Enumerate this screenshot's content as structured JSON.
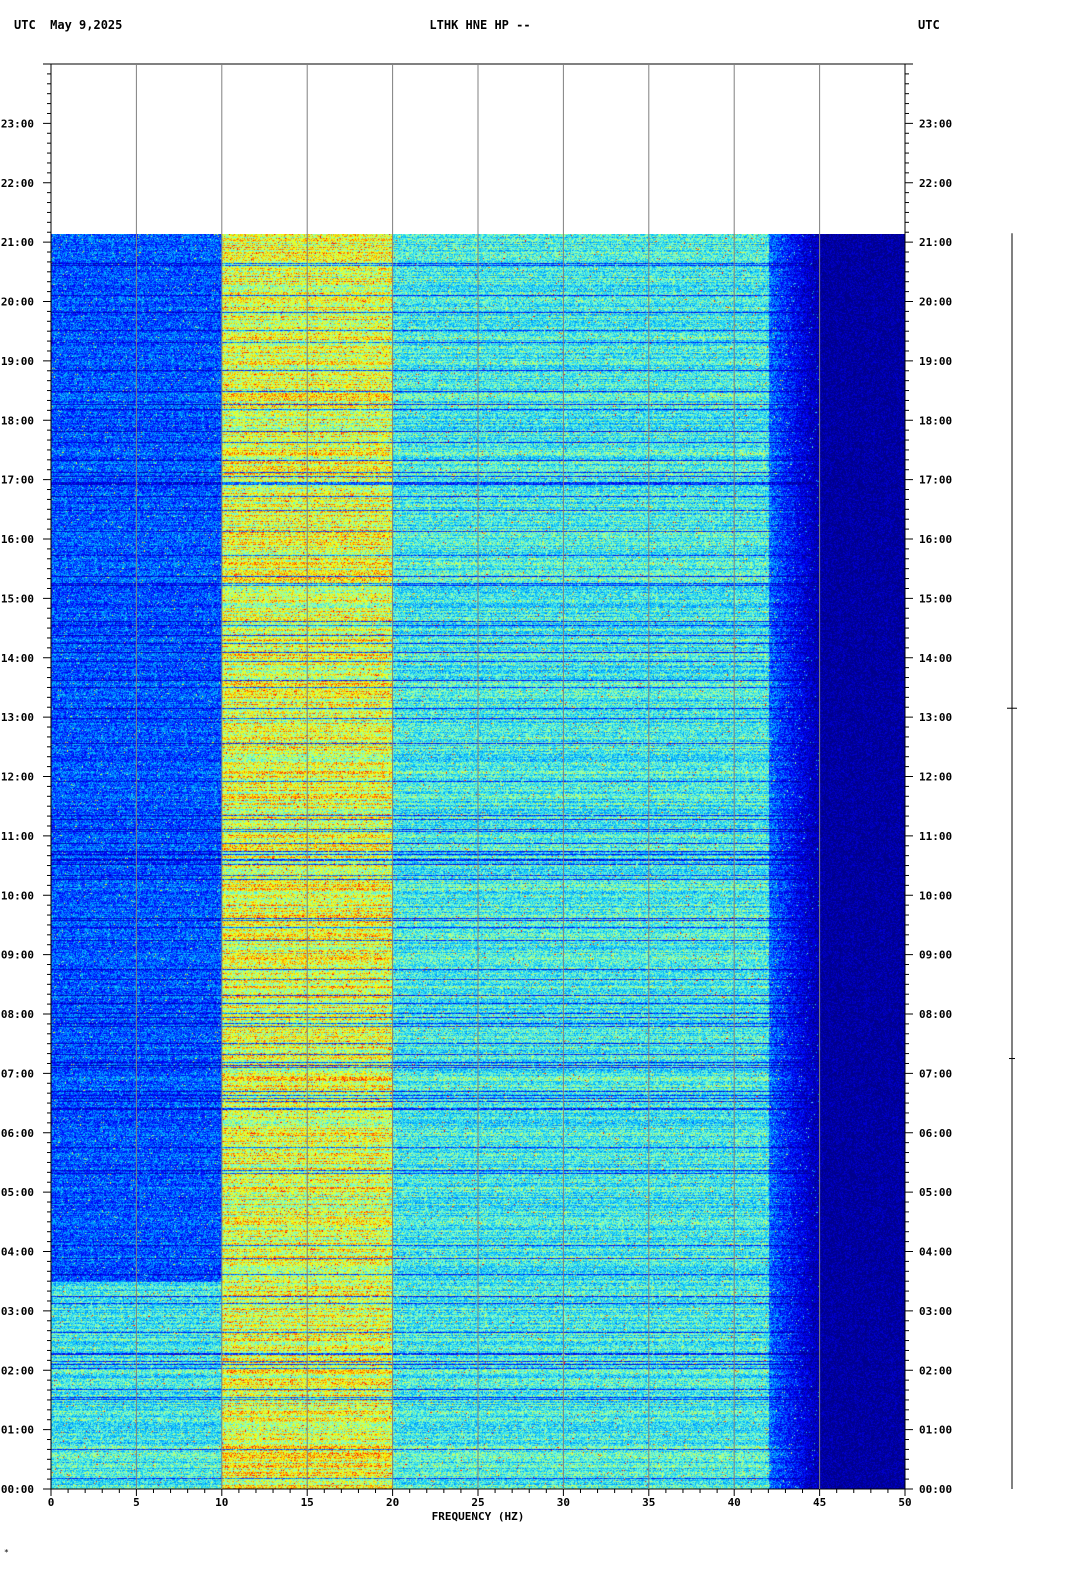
{
  "header": {
    "left": "UTC  May 9,2025",
    "center": "LTHK HNE HP --",
    "right": "UTC"
  },
  "chart_data": {
    "type": "heatmap",
    "title": "LTHK HNE HP --",
    "date": "May 9,2025",
    "xlabel": "FREQUENCY (HZ)",
    "ylabel": "UTC",
    "xlim": [
      0,
      50
    ],
    "ylim_hours": [
      0,
      24
    ],
    "x_ticks": [
      "0",
      "5",
      "10",
      "15",
      "20",
      "25",
      "30",
      "35",
      "40",
      "45",
      "50"
    ],
    "y_tick_labels": [
      "00:00",
      "01:00",
      "02:00",
      "03:00",
      "04:00",
      "05:00",
      "06:00",
      "07:00",
      "08:00",
      "09:00",
      "10:00",
      "11:00",
      "12:00",
      "13:00",
      "14:00",
      "15:00",
      "16:00",
      "17:00",
      "18:00",
      "19:00",
      "20:00",
      "21:00",
      "22:00",
      "23:00"
    ],
    "data_end_hour": 21.15,
    "grid": true,
    "colormap": [
      "#00008b",
      "#0000ff",
      "#00bfff",
      "#7fffd4",
      "#ffff00",
      "#ff0000"
    ],
    "energy_bands": [
      {
        "x_start": 0,
        "x_end": 10,
        "level": "low"
      },
      {
        "x_start": 10,
        "x_end": 20,
        "level": "high"
      },
      {
        "x_start": 20,
        "x_end": 42,
        "level": "medium"
      },
      {
        "x_start": 42,
        "x_end": 45,
        "level": "falloff"
      },
      {
        "x_start": 45,
        "x_end": 50,
        "level": "none"
      }
    ]
  },
  "footer": {
    "mark": "*"
  }
}
